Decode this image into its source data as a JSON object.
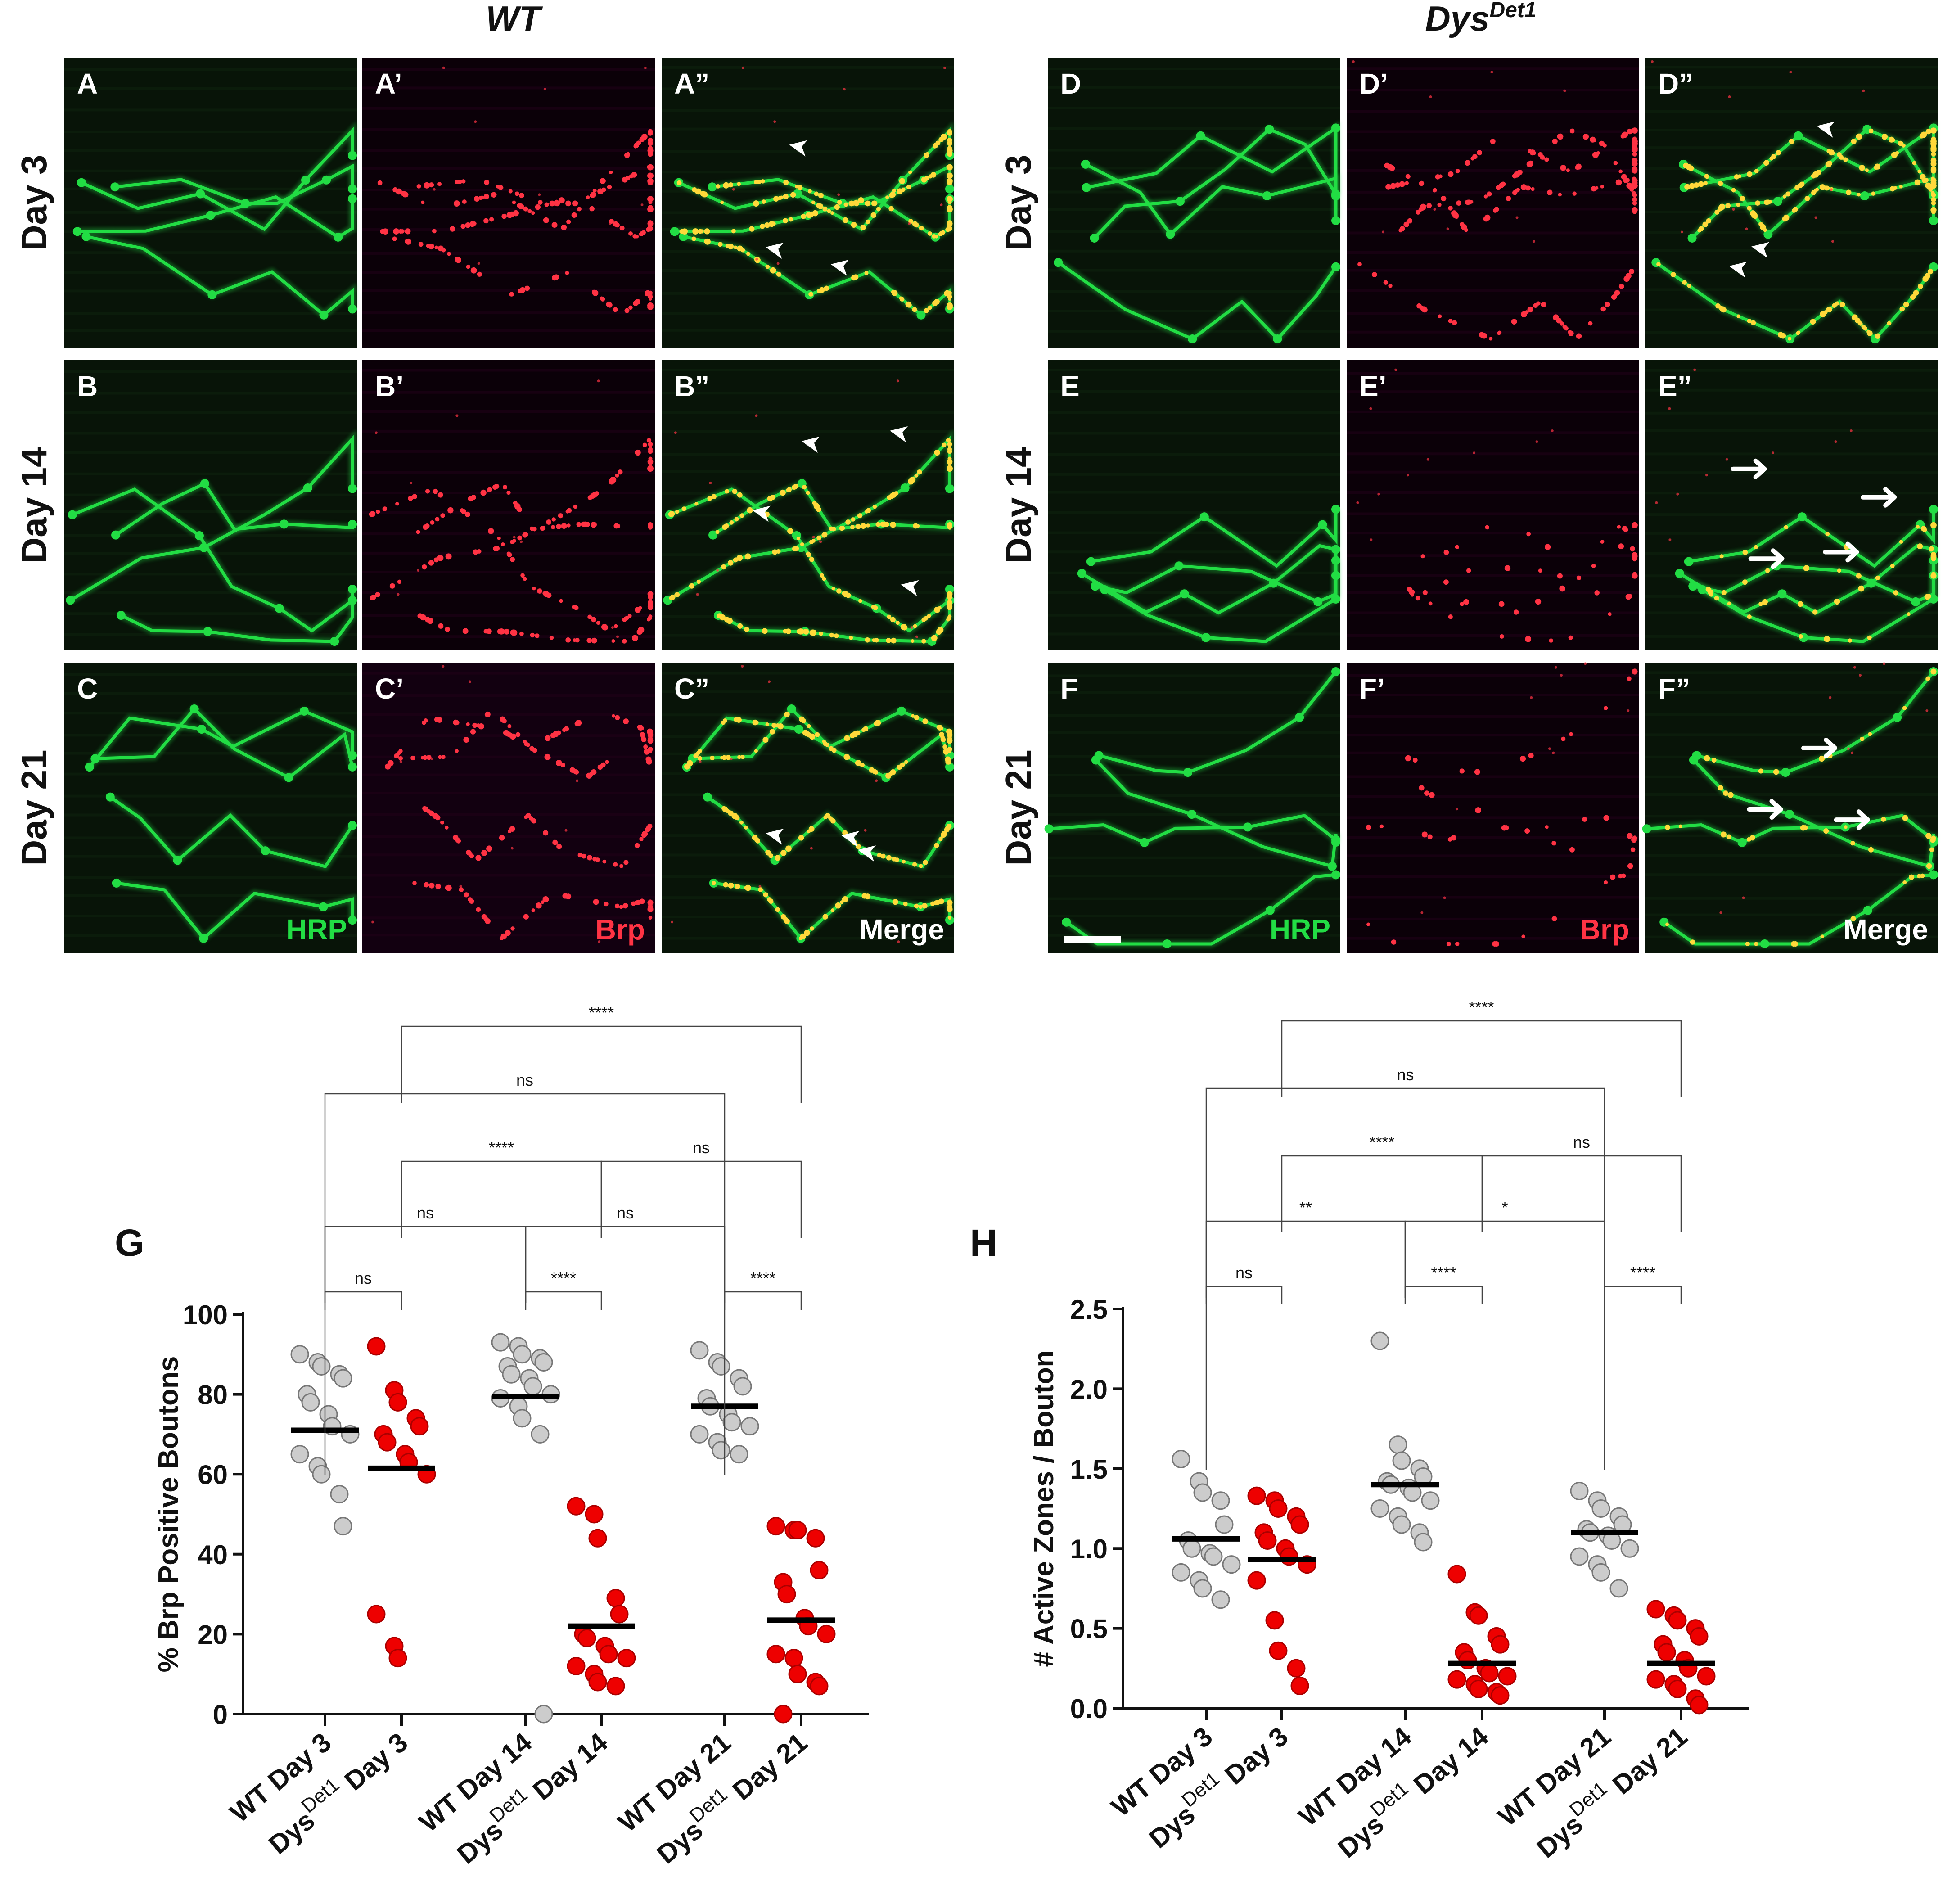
{
  "figure": {
    "genotypes": {
      "wt": {
        "text": "WT",
        "sup": ""
      },
      "dys": {
        "text": "Dys",
        "sup": "Det1"
      }
    },
    "rows": [
      "Day 3",
      "Day 14",
      "Day 21"
    ],
    "panels": {
      "wt": [
        [
          "A",
          "A’",
          "A”"
        ],
        [
          "B",
          "B’",
          "B”"
        ],
        [
          "C",
          "C’",
          "C”"
        ]
      ],
      "dys": [
        [
          "D",
          "D’",
          "D”"
        ],
        [
          "E",
          "E’",
          "E”"
        ],
        [
          "F",
          "F’",
          "F”"
        ]
      ]
    },
    "channels": [
      "HRP",
      "Brp",
      "Merge"
    ],
    "colors": {
      "hrp": "#22dd44",
      "brp": "#ff3344",
      "merge_text": "#ffffff",
      "wt_marker": "#cccccc",
      "dys_marker": "#ee0000"
    }
  },
  "chart_data": [
    {
      "panel": "G",
      "type": "scatter",
      "ylabel": "% Brp Positive Boutons",
      "ylim": [
        0,
        100
      ],
      "yticks": [
        "0",
        "20",
        "40",
        "60",
        "80",
        "100"
      ],
      "ytickvals": [
        0,
        20,
        40,
        60,
        80,
        100
      ],
      "categories": [
        {
          "main": "WT Day 3",
          "dys": false
        },
        {
          "main": "Dys",
          "sup": "Det1",
          "rest": " Day 3",
          "dys": true
        },
        {
          "main": "WT Day 14",
          "dys": false
        },
        {
          "main": "Dys",
          "sup": "Det1",
          "rest": " Day 14",
          "dys": true
        },
        {
          "main": "WT Day 21",
          "dys": false
        },
        {
          "main": "Dys",
          "sup": "Det1",
          "rest": " Day 21",
          "dys": true
        }
      ],
      "series": [
        {
          "values": [
            90,
            88,
            87,
            85,
            84,
            80,
            78,
            75,
            72,
            70,
            65,
            62,
            60,
            55,
            47
          ],
          "mean": 71
        },
        {
          "values": [
            92,
            81,
            78,
            74,
            72,
            70,
            68,
            65,
            63,
            60,
            25,
            17,
            14
          ],
          "mean": 61.5
        },
        {
          "values": [
            93,
            92,
            90,
            89,
            88,
            87,
            85,
            84,
            82,
            80,
            79,
            77,
            74,
            70,
            0
          ],
          "mean": 79.5
        },
        {
          "values": [
            52,
            50,
            44,
            29,
            25,
            20,
            19,
            17,
            15,
            14,
            12,
            10,
            8,
            7
          ],
          "mean": 22
        },
        {
          "values": [
            91,
            88,
            87,
            84,
            82,
            79,
            77,
            75,
            73,
            72,
            70,
            68,
            66,
            65
          ],
          "mean": 77
        },
        {
          "values": [
            47,
            46,
            46,
            44,
            36,
            33,
            30,
            24,
            22,
            20,
            15,
            14,
            10,
            8,
            7,
            0
          ],
          "mean": 23.5
        }
      ],
      "comparisons": [
        {
          "from": 0,
          "to": 1,
          "label": "ns",
          "level": 0
        },
        {
          "from": 2,
          "to": 3,
          "label": "****",
          "level": 0
        },
        {
          "from": 4,
          "to": 5,
          "label": "****",
          "level": 0
        },
        {
          "from": 0,
          "to": 2,
          "label": "ns",
          "level": 1
        },
        {
          "from": 2,
          "to": 4,
          "label": "ns",
          "level": 1
        },
        {
          "from": 1,
          "to": 3,
          "label": "****",
          "level": 2
        },
        {
          "from": 3,
          "to": 5,
          "label": "ns",
          "level": 2
        },
        {
          "from": 0,
          "to": 4,
          "label": "ns",
          "level": 3
        },
        {
          "from": 1,
          "to": 5,
          "label": "****",
          "level": 4
        }
      ]
    },
    {
      "panel": "H",
      "type": "scatter",
      "ylabel": "# Active Zones / Bouton",
      "ylim": [
        0,
        2.5
      ],
      "yticks": [
        "0.0",
        "0.5",
        "1.0",
        "1.5",
        "2.0",
        "2.5"
      ],
      "ytickvals": [
        0,
        0.5,
        1,
        1.5,
        2,
        2.5
      ],
      "categories": [
        {
          "main": "WT Day 3",
          "dys": false
        },
        {
          "main": "Dys",
          "sup": "Det1",
          "rest": " Day 3",
          "dys": true
        },
        {
          "main": "WT Day 14",
          "dys": false
        },
        {
          "main": "Dys",
          "sup": "Det1",
          "rest": " Day 14",
          "dys": true
        },
        {
          "main": "WT Day 21",
          "dys": false
        },
        {
          "main": "Dys",
          "sup": "Det1",
          "rest": " Day 21",
          "dys": true
        }
      ],
      "series": [
        {
          "values": [
            1.56,
            1.42,
            1.35,
            1.3,
            1.15,
            1.05,
            1.0,
            0.97,
            0.95,
            0.9,
            0.85,
            0.8,
            0.75,
            0.68
          ],
          "mean": 1.06
        },
        {
          "values": [
            1.33,
            1.3,
            1.25,
            1.2,
            1.15,
            1.1,
            1.05,
            1.0,
            0.95,
            0.9,
            0.8,
            0.55,
            0.36,
            0.25,
            0.14
          ],
          "mean": 0.93
        },
        {
          "values": [
            2.3,
            1.65,
            1.55,
            1.5,
            1.45,
            1.42,
            1.4,
            1.38,
            1.35,
            1.3,
            1.25,
            1.2,
            1.15,
            1.1,
            1.04
          ],
          "mean": 1.4
        },
        {
          "values": [
            0.84,
            0.6,
            0.58,
            0.45,
            0.4,
            0.35,
            0.3,
            0.25,
            0.22,
            0.2,
            0.18,
            0.15,
            0.12,
            0.1,
            0.08
          ],
          "mean": 0.28
        },
        {
          "values": [
            1.36,
            1.3,
            1.25,
            1.2,
            1.15,
            1.12,
            1.1,
            1.08,
            1.05,
            1.0,
            0.95,
            0.9,
            0.85,
            0.75
          ],
          "mean": 1.1
        },
        {
          "values": [
            0.62,
            0.58,
            0.55,
            0.5,
            0.45,
            0.4,
            0.35,
            0.3,
            0.25,
            0.2,
            0.18,
            0.15,
            0.12,
            0.06,
            0.02
          ],
          "mean": 0.28
        }
      ],
      "comparisons": [
        {
          "from": 0,
          "to": 1,
          "label": "ns",
          "level": 0
        },
        {
          "from": 2,
          "to": 3,
          "label": "****",
          "level": 0
        },
        {
          "from": 4,
          "to": 5,
          "label": "****",
          "level": 0
        },
        {
          "from": 0,
          "to": 2,
          "label": "**",
          "level": 1
        },
        {
          "from": 2,
          "to": 4,
          "label": "*",
          "level": 1
        },
        {
          "from": 1,
          "to": 3,
          "label": "****",
          "level": 2
        },
        {
          "from": 3,
          "to": 5,
          "label": "ns",
          "level": 2
        },
        {
          "from": 0,
          "to": 4,
          "label": "ns",
          "level": 3
        },
        {
          "from": 1,
          "to": 5,
          "label": "****",
          "level": 4
        }
      ]
    }
  ]
}
